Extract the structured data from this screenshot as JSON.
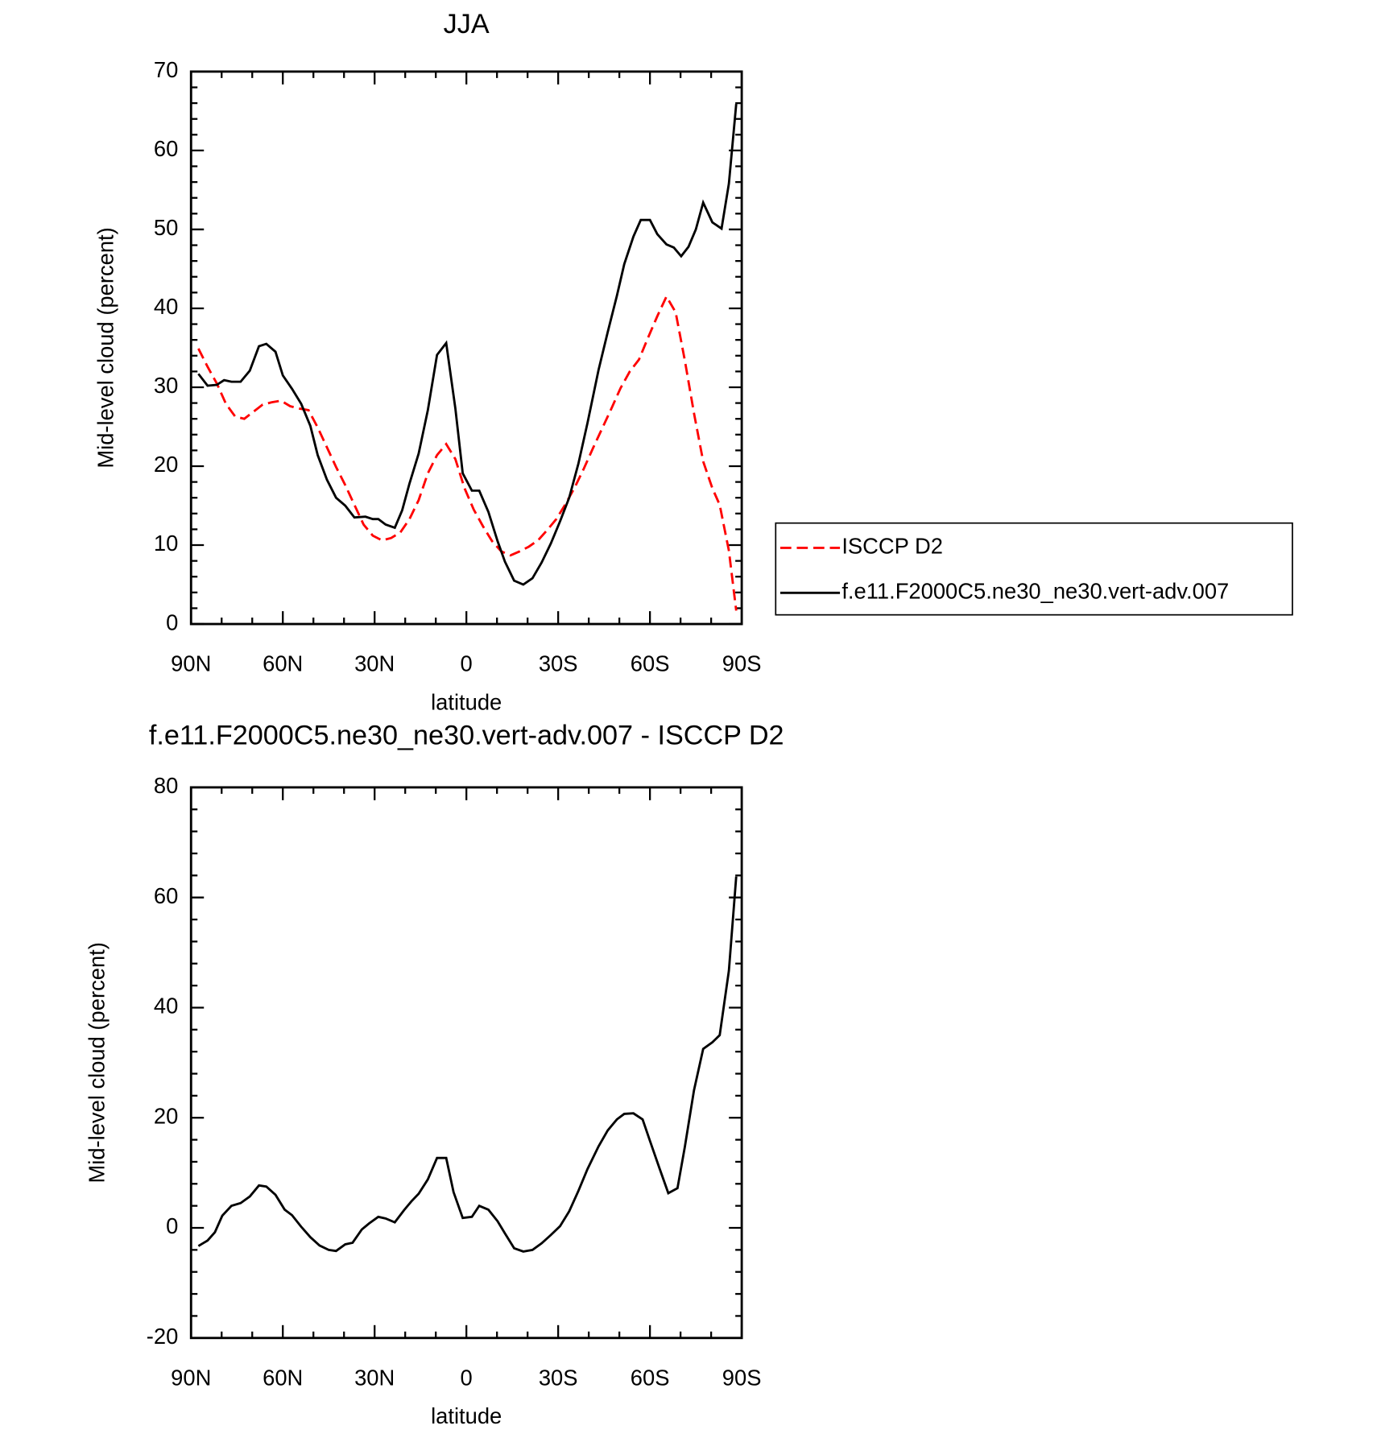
{
  "chart_data": [
    {
      "type": "line",
      "title": "JJA",
      "x_label": "latitude",
      "y_label": "Mid-level cloud (percent)",
      "xlim": [
        90,
        -90
      ],
      "xticks": [
        {
          "value": 90,
          "label": "90N"
        },
        {
          "value": 60,
          "label": "60N"
        },
        {
          "value": 30,
          "label": "30N"
        },
        0,
        {
          "value": -30,
          "label": "30S"
        },
        {
          "value": -60,
          "label": "60S"
        },
        {
          "value": -90,
          "label": "90S"
        }
      ],
      "ylim": [
        0,
        70
      ],
      "yticks": [
        0,
        10,
        20,
        30,
        40,
        50,
        60,
        70
      ],
      "legend": "right",
      "series": [
        {
          "name": "ISCCP D2",
          "color": "#ff0000",
          "dashed": true,
          "x": [
            87.6,
            84.6,
            81.6,
            78.6,
            75.6,
            72.6,
            69.6,
            66.6,
            63.6,
            60.6,
            57.6,
            54.6,
            51.6,
            48.6,
            45.6,
            42.6,
            39.6,
            36.6,
            33.6,
            30.6,
            27.6,
            24.6,
            21.6,
            18.6,
            15.6,
            12.6,
            9.6,
            6.6,
            3.6,
            0.6,
            -2.4,
            -5.4,
            -8.4,
            -11.4,
            -14.4,
            -17.4,
            -20.4,
            -23.4,
            -26.4,
            -29.4,
            -32.4,
            -35.4,
            -38.4,
            -41.4,
            -44.4,
            -47.4,
            -50.4,
            -53.4,
            -56.4,
            -59.4,
            -62.4,
            -65.4,
            -68.4,
            -71.4,
            -74.4,
            -77.4,
            -80.4,
            -82.8,
            -85.8,
            -88.2
          ],
          "values": [
            34.9,
            32.6,
            30.5,
            27.9,
            26.3,
            26,
            26.9,
            27.8,
            28.1,
            28.3,
            27.6,
            27.3,
            27.1,
            24.9,
            22.4,
            19.9,
            17.6,
            15.1,
            12.6,
            11.2,
            10.6,
            10.9,
            11.6,
            13.3,
            15.7,
            19.1,
            21.4,
            22.8,
            20.9,
            17.2,
            14.5,
            12.4,
            10.5,
            9.2,
            8.7,
            9.2,
            9.8,
            10.6,
            11.9,
            13.3,
            15.2,
            17.3,
            19.7,
            22.3,
            24.8,
            27.3,
            29.9,
            32,
            33.5,
            36.3,
            39,
            41.5,
            39.5,
            33.4,
            26.7,
            20.6,
            17.2,
            15.1,
            9.3,
            1.7
          ]
        },
        {
          "name": "f.e11.F2000C5.ne30_ne30.vert-adv.007",
          "color": "#000000",
          "dashed": false,
          "x": [
            87.6,
            84.6,
            81.6,
            79.2,
            76.8,
            73.8,
            70.8,
            67.8,
            65.4,
            62.4,
            60,
            57,
            54,
            51,
            48.6,
            45.6,
            42.6,
            39.6,
            36.6,
            33,
            30.6,
            28.8,
            26.4,
            23.4,
            21,
            18.6,
            15.6,
            12.6,
            9.6,
            6.6,
            3.6,
            1.2,
            -1.8,
            -4.2,
            -7.2,
            -10.2,
            -12.6,
            -15.6,
            -18.6,
            -21.6,
            -24.6,
            -27.6,
            -30.6,
            -33.6,
            -36.6,
            -39.6,
            -43.2,
            -46.2,
            -49.2,
            -51.6,
            -54.6,
            -57,
            -60,
            -62.4,
            -65.4,
            -67.8,
            -70.2,
            -72.6,
            -75,
            -77.4,
            -80.4,
            -83.4,
            -85.8,
            -88.2
          ],
          "values": [
            31.7,
            30.2,
            30.3,
            30.9,
            30.7,
            30.7,
            32.1,
            35.2,
            35.5,
            34.5,
            31.5,
            29.8,
            27.9,
            25.1,
            21.4,
            18.3,
            16,
            15,
            13.5,
            13.6,
            13.3,
            13.3,
            12.6,
            12.2,
            14.4,
            17.8,
            21.6,
            27.1,
            34.1,
            35.6,
            27.3,
            19.1,
            16.9,
            16.9,
            14.2,
            10.5,
            7.9,
            5.5,
            5,
            5.8,
            7.8,
            10.2,
            13,
            16,
            20.3,
            25.5,
            32.2,
            37,
            41.6,
            45.6,
            49.1,
            51.2,
            51.2,
            49.4,
            48.1,
            47.7,
            46.6,
            47.8,
            50,
            53.4,
            50.9,
            50.1,
            55.8,
            65.9
          ]
        }
      ]
    },
    {
      "type": "line",
      "title": "f.e11.F2000C5.ne30_ne30.vert-adv.007 - ISCCP D2",
      "x_label": "latitude",
      "y_label": "Mid-level cloud (percent)",
      "xlim": [
        90,
        -90
      ],
      "xticks": [
        {
          "value": 90,
          "label": "90N"
        },
        {
          "value": 60,
          "label": "60N"
        },
        {
          "value": 30,
          "label": "30N"
        },
        0,
        {
          "value": -30,
          "label": "30S"
        },
        {
          "value": -60,
          "label": "60S"
        },
        {
          "value": -90,
          "label": "90S"
        }
      ],
      "ylim": [
        -20,
        80
      ],
      "yticks": [
        -20,
        0,
        20,
        40,
        60,
        80
      ],
      "series": [
        {
          "color": "#000000",
          "dashed": false,
          "x": [
            87.6,
            84.6,
            82.2,
            79.8,
            76.8,
            73.8,
            70.8,
            67.8,
            65.4,
            62.4,
            59.4,
            57,
            54,
            51,
            48,
            45,
            42.6,
            39.6,
            37.2,
            34.2,
            31.8,
            28.8,
            26.4,
            23.4,
            20.4,
            18,
            15.6,
            12.6,
            9.6,
            6.6,
            4.2,
            1.2,
            -1.8,
            -4.2,
            -7.2,
            -10.2,
            -12.6,
            -15.6,
            -18.6,
            -21.6,
            -24.6,
            -27.6,
            -30.6,
            -33.6,
            -36.6,
            -39.6,
            -43.2,
            -46.2,
            -49.2,
            -51.6,
            -54.6,
            -57.6,
            -60,
            -63,
            -66,
            -69,
            -71.4,
            -74.4,
            -77.4,
            -80.4,
            -82.8,
            -85.8,
            -88.2
          ],
          "values": [
            -3.3,
            -2.3,
            -0.8,
            2.2,
            4,
            4.5,
            5.7,
            7.7,
            7.5,
            6,
            3.3,
            2.3,
            0.2,
            -1.7,
            -3.2,
            -4,
            -4.2,
            -3,
            -2.7,
            -0.3,
            0.8,
            2,
            1.7,
            1,
            3.2,
            4.8,
            6.2,
            8.8,
            12.7,
            12.7,
            6.5,
            1.8,
            2,
            4,
            3.3,
            1.2,
            -1,
            -3.7,
            -4.3,
            -4,
            -2.8,
            -1.3,
            0.3,
            3,
            6.7,
            10.7,
            14.8,
            17.7,
            19.7,
            20.7,
            20.8,
            19.7,
            15.8,
            11,
            6.3,
            7.2,
            14.7,
            25,
            32.5,
            33.7,
            35,
            46.7,
            63.8
          ]
        }
      ]
    }
  ]
}
